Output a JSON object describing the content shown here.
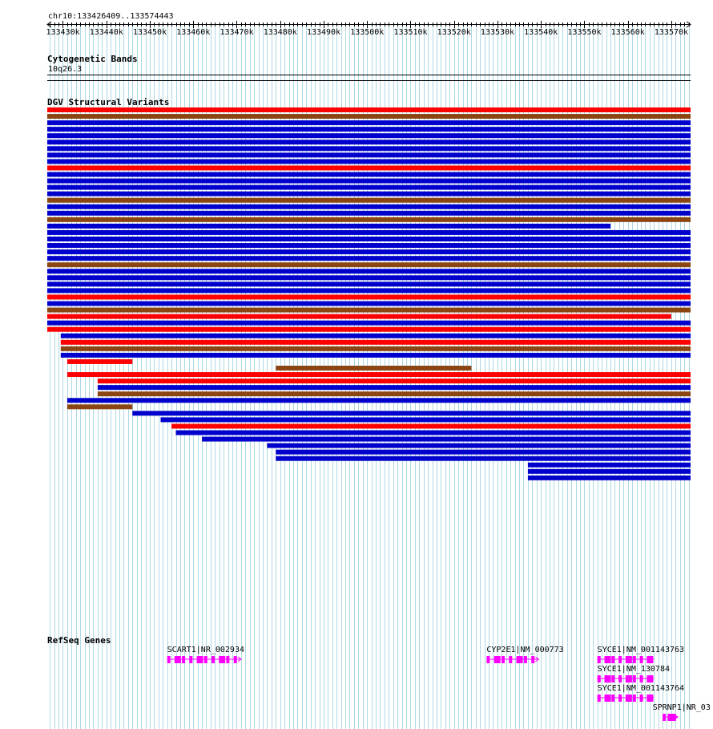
{
  "locus": "chr10:133426409..133574443",
  "ruler": {
    "start": 133426409,
    "end": 133574443,
    "ticks": [
      "133430k",
      "133440k",
      "133450k",
      "133460k",
      "133470k",
      "133480k",
      "133490k",
      "133500k",
      "133510k",
      "133520k",
      "133530k",
      "133540k",
      "133550k",
      "133560k",
      "133570k"
    ]
  },
  "tracks": {
    "cytoband": {
      "title": "Cytogenetic Bands",
      "band": "10q26.3"
    },
    "dgv": {
      "title": "DGV Structural Variants"
    },
    "refseq": {
      "title": "RefSeq Genes"
    }
  },
  "colors": {
    "gain": "#ff0000",
    "loss": "#0000cc",
    "gain_loss": "#8b4513",
    "inversion": "#000000",
    "gene": "#ff00ff",
    "gridline": "#add8e6"
  },
  "variants": [
    {
      "start": 133426409,
      "end": 133574443,
      "type": "gain"
    },
    {
      "start": 133426409,
      "end": 133574443,
      "type": "gain_loss"
    },
    {
      "start": 133426409,
      "end": 133574443,
      "type": "loss"
    },
    {
      "start": 133426409,
      "end": 133574443,
      "type": "loss"
    },
    {
      "start": 133426409,
      "end": 133574443,
      "type": "loss"
    },
    {
      "start": 133426409,
      "end": 133574443,
      "type": "loss"
    },
    {
      "start": 133426409,
      "end": 133574443,
      "type": "loss"
    },
    {
      "start": 133426409,
      "end": 133574443,
      "type": "loss"
    },
    {
      "start": 133426409,
      "end": 133574443,
      "type": "loss"
    },
    {
      "start": 133426409,
      "end": 133574443,
      "type": "gain"
    },
    {
      "start": 133426409,
      "end": 133574443,
      "type": "loss"
    },
    {
      "start": 133426409,
      "end": 133574443,
      "type": "loss"
    },
    {
      "start": 133426409,
      "end": 133574443,
      "type": "loss"
    },
    {
      "start": 133426409,
      "end": 133574443,
      "type": "loss"
    },
    {
      "start": 133426409,
      "end": 133574443,
      "type": "gain_loss"
    },
    {
      "start": 133426409,
      "end": 133574443,
      "type": "loss"
    },
    {
      "start": 133426409,
      "end": 133574443,
      "type": "loss"
    },
    {
      "start": 133426409,
      "end": 133574443,
      "type": "gain_loss"
    },
    {
      "start": 133426409,
      "end": 133556000,
      "type": "loss"
    },
    {
      "start": 133426409,
      "end": 133574443,
      "type": "loss"
    },
    {
      "start": 133426409,
      "end": 133574443,
      "type": "loss"
    },
    {
      "start": 133426409,
      "end": 133574443,
      "type": "loss"
    },
    {
      "start": 133426409,
      "end": 133574443,
      "type": "loss"
    },
    {
      "start": 133426409,
      "end": 133574443,
      "type": "loss"
    },
    {
      "start": 133426409,
      "end": 133574443,
      "type": "gain_loss"
    },
    {
      "start": 133426409,
      "end": 133574443,
      "type": "loss"
    },
    {
      "start": 133426409,
      "end": 133574443,
      "type": "loss"
    },
    {
      "start": 133426409,
      "end": 133574443,
      "type": "loss"
    },
    {
      "start": 133426409,
      "end": 133574443,
      "type": "loss"
    },
    {
      "start": 133426409,
      "end": 133574443,
      "type": "gain"
    },
    {
      "start": 133426409,
      "end": 133574443,
      "type": "loss"
    },
    {
      "start": 133426409,
      "end": 133574443,
      "type": "gain_loss"
    },
    {
      "start": 133426409,
      "end": 133570000,
      "type": "gain"
    },
    {
      "start": 133426409,
      "end": 133574443,
      "type": "loss"
    },
    {
      "start": 133426409,
      "end": 133574443,
      "type": "gain"
    },
    {
      "start": 133429500,
      "end": 133574443,
      "type": "loss"
    },
    {
      "start": 133429500,
      "end": 133574443,
      "type": "gain"
    },
    {
      "start": 133429500,
      "end": 133574443,
      "type": "gain_loss"
    },
    {
      "start": 133429500,
      "end": 133574443,
      "type": "loss"
    },
    {
      "start": 133431000,
      "end": 133446000,
      "type": "gain"
    },
    {
      "start": 133479000,
      "end": 133524000,
      "type": "gain_loss"
    },
    {
      "start": 133431000,
      "end": 133574443,
      "type": "gain"
    },
    {
      "start": 133438000,
      "end": 133574443,
      "type": "gain"
    },
    {
      "start": 133438000,
      "end": 133574443,
      "type": "loss"
    },
    {
      "start": 133438000,
      "end": 133574443,
      "type": "gain_loss"
    },
    {
      "start": 133431000,
      "end": 133574443,
      "type": "loss"
    },
    {
      "start": 133431000,
      "end": 133446000,
      "type": "gain_loss"
    },
    {
      "start": 133446000,
      "end": 133574443,
      "type": "loss"
    },
    {
      "start": 133452500,
      "end": 133574443,
      "type": "loss"
    },
    {
      "start": 133455000,
      "end": 133574443,
      "type": "gain"
    },
    {
      "start": 133456000,
      "end": 133574443,
      "type": "loss"
    },
    {
      "start": 133462000,
      "end": 133574443,
      "type": "loss"
    },
    {
      "start": 133477000,
      "end": 133574443,
      "type": "loss"
    },
    {
      "start": 133479000,
      "end": 133574443,
      "type": "loss"
    },
    {
      "start": 133479000,
      "end": 133574443,
      "type": "loss"
    },
    {
      "start": 133537000,
      "end": 133574443,
      "type": "loss"
    },
    {
      "start": 133537000,
      "end": 133574443,
      "type": "loss"
    },
    {
      "start": 133537000,
      "end": 133574443,
      "type": "loss"
    }
  ],
  "genes": [
    {
      "label": "SCART1|NR_002934",
      "start": 133454000,
      "end": 133471000,
      "strand": "+"
    },
    {
      "label": "CYP2E1|NM_000773",
      "start": 133527500,
      "end": 133539500,
      "strand": "+"
    },
    {
      "label": "SYCE1|NM_001143763",
      "start": 133553000,
      "end": 133566000,
      "strand": "-"
    },
    {
      "label": "SYCE1|NM_130784",
      "start": 133553000,
      "end": 133566000,
      "strand": "-"
    },
    {
      "label": "SYCE1|NM_001143764",
      "start": 133553000,
      "end": 133566000,
      "strand": "-"
    },
    {
      "label": "SPRNP1|NR_03",
      "start": 133568000,
      "end": 133571500,
      "strand": "+"
    }
  ]
}
